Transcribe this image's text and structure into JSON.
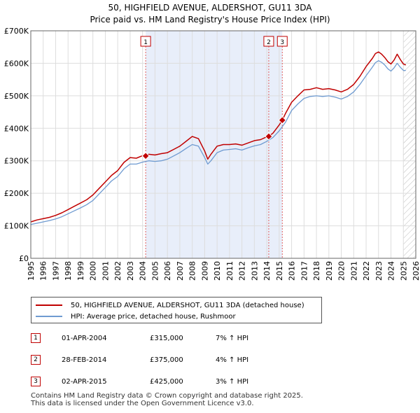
{
  "chart_data": {
    "type": "line",
    "title": "50, HIGHFIELD AVENUE, ALDERSHOT, GU11 3DA",
    "subtitle": "Price paid vs. HM Land Registry's House Price Index (HPI)",
    "xlabel": "",
    "ylabel": "",
    "xlim": [
      1995.0,
      2026.0
    ],
    "ylim": [
      0,
      700000
    ],
    "y_ticks": [
      0,
      100000,
      200000,
      300000,
      400000,
      500000,
      600000,
      700000
    ],
    "y_tick_labels": [
      "£0",
      "£100K",
      "£200K",
      "£300K",
      "£400K",
      "£500K",
      "£600K",
      "£700K"
    ],
    "x_ticks": [
      1995,
      1996,
      1997,
      1998,
      1999,
      2000,
      2001,
      2002,
      2003,
      2004,
      2005,
      2006,
      2007,
      2008,
      2009,
      2010,
      2011,
      2012,
      2013,
      2014,
      2015,
      2016,
      2017,
      2018,
      2019,
      2020,
      2021,
      2022,
      2023,
      2024,
      2025,
      2026
    ],
    "x_tick_labels": [
      "1995",
      "1996",
      "1997",
      "1998",
      "1999",
      "2000",
      "2001",
      "2002",
      "2003",
      "2004",
      "2005",
      "2006",
      "2007",
      "2008",
      "2009",
      "2010",
      "2011",
      "2012",
      "2013",
      "2014",
      "2015",
      "2016",
      "2017",
      "2018",
      "2019",
      "2020",
      "2021",
      "2022",
      "2023",
      "2024",
      "2025",
      "2026"
    ],
    "grid": true,
    "series": [
      {
        "name": "50, HIGHFIELD AVENUE, ALDERSHOT, GU11 3DA (detached house)",
        "color": "#c00000",
        "x": [
          1995.0,
          1995.5,
          1996.0,
          1996.5,
          1997.0,
          1997.5,
          1998.0,
          1998.5,
          1999.0,
          1999.5,
          2000.0,
          2000.5,
          2001.0,
          2001.5,
          2002.0,
          2002.5,
          2003.0,
          2003.5,
          2004.0,
          2004.25,
          2004.5,
          2005.0,
          2005.5,
          2006.0,
          2006.5,
          2007.0,
          2007.5,
          2008.0,
          2008.5,
          2009.0,
          2009.25,
          2009.5,
          2010.0,
          2010.5,
          2011.0,
          2011.5,
          2012.0,
          2012.5,
          2013.0,
          2013.5,
          2014.0,
          2014.16,
          2014.5,
          2015.0,
          2015.25,
          2015.5,
          2016.0,
          2016.5,
          2017.0,
          2017.5,
          2018.0,
          2018.5,
          2019.0,
          2019.5,
          2020.0,
          2020.5,
          2021.0,
          2021.5,
          2022.0,
          2022.5,
          2022.75,
          2023.0,
          2023.25,
          2023.5,
          2023.75,
          2024.0,
          2024.25,
          2024.5,
          2024.75,
          2025.0,
          2025.2
        ],
        "values": [
          112000,
          118000,
          122000,
          126000,
          132000,
          140000,
          150000,
          160000,
          170000,
          180000,
          195000,
          215000,
          235000,
          255000,
          270000,
          295000,
          310000,
          308000,
          316000,
          315000,
          320000,
          318000,
          322000,
          325000,
          335000,
          345000,
          360000,
          375000,
          368000,
          330000,
          305000,
          320000,
          345000,
          350000,
          350000,
          352000,
          348000,
          355000,
          362000,
          365000,
          374000,
          375000,
          385000,
          410000,
          425000,
          445000,
          480000,
          500000,
          518000,
          520000,
          525000,
          520000,
          522000,
          518000,
          512000,
          520000,
          535000,
          560000,
          590000,
          615000,
          630000,
          635000,
          628000,
          618000,
          605000,
          598000,
          610000,
          628000,
          612000,
          598000,
          595000
        ]
      },
      {
        "name": "HPI: Average price, detached house, Rushmoor",
        "color": "#6f9bd1",
        "x": [
          1995.0,
          1995.5,
          1996.0,
          1996.5,
          1997.0,
          1997.5,
          1998.0,
          1998.5,
          1999.0,
          1999.5,
          2000.0,
          2000.5,
          2001.0,
          2001.5,
          2002.0,
          2002.5,
          2003.0,
          2003.5,
          2004.0,
          2004.5,
          2005.0,
          2005.5,
          2006.0,
          2006.5,
          2007.0,
          2007.5,
          2008.0,
          2008.5,
          2009.0,
          2009.25,
          2009.5,
          2010.0,
          2010.5,
          2011.0,
          2011.5,
          2012.0,
          2012.5,
          2013.0,
          2013.5,
          2014.0,
          2014.5,
          2015.0,
          2015.5,
          2016.0,
          2016.5,
          2017.0,
          2017.5,
          2018.0,
          2018.5,
          2019.0,
          2019.5,
          2020.0,
          2020.5,
          2021.0,
          2021.5,
          2022.0,
          2022.5,
          2022.75,
          2023.0,
          2023.25,
          2023.5,
          2023.75,
          2024.0,
          2024.25,
          2024.5,
          2024.75,
          2025.0,
          2025.2
        ],
        "values": [
          104000,
          108000,
          112000,
          116000,
          121000,
          128000,
          137000,
          146000,
          155000,
          165000,
          178000,
          198000,
          218000,
          238000,
          252000,
          275000,
          290000,
          290000,
          296000,
          300000,
          298000,
          300000,
          305000,
          315000,
          325000,
          338000,
          350000,
          345000,
          310000,
          290000,
          300000,
          325000,
          333000,
          335000,
          337000,
          333000,
          340000,
          346000,
          350000,
          360000,
          372000,
          392000,
          418000,
          455000,
          475000,
          492000,
          498000,
          500000,
          498000,
          500000,
          496000,
          490000,
          498000,
          512000,
          535000,
          562000,
          588000,
          602000,
          608000,
          603000,
          595000,
          583000,
          576000,
          586000,
          600000,
          588000,
          578000,
          578000
        ]
      }
    ],
    "sales": [
      {
        "label": "1",
        "x": 2004.25,
        "value": 315000
      },
      {
        "label": "2",
        "x": 2014.16,
        "value": 375000
      },
      {
        "label": "3",
        "x": 2015.25,
        "value": 425000
      }
    ],
    "future_shade_from": 2025.0
  },
  "legend": {
    "items": [
      {
        "label": "50, HIGHFIELD AVENUE, ALDERSHOT, GU11 3DA (detached house)",
        "color": "#c00000"
      },
      {
        "label": "HPI: Average price, detached house, Rushmoor",
        "color": "#6f9bd1"
      }
    ]
  },
  "transactions": [
    {
      "num": "1",
      "date": "01-APR-2004",
      "price": "£315,000",
      "hpi": "7% ↑ HPI"
    },
    {
      "num": "2",
      "date": "28-FEB-2014",
      "price": "£375,000",
      "hpi": "4% ↑ HPI"
    },
    {
      "num": "3",
      "date": "02-APR-2015",
      "price": "£425,000",
      "hpi": "3% ↑ HPI"
    }
  ],
  "footer": {
    "line1": "Contains HM Land Registry data © Crown copyright and database right 2025.",
    "line2": "This data is licensed under the Open Government Licence v3.0."
  }
}
